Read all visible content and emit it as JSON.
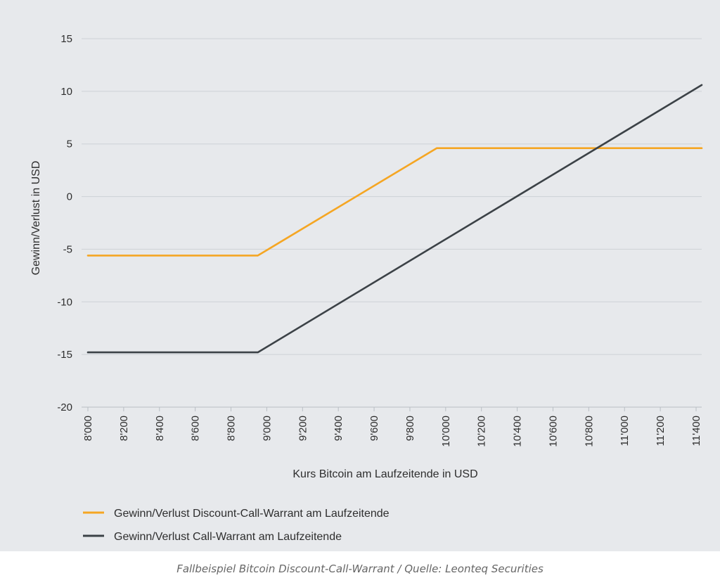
{
  "caption": "Fallbeispiel Bitcoin Discount-Call-Warrant / Quelle: Leonteq Securities",
  "chart_data": {
    "type": "line",
    "title": "",
    "xlabel": "Kurs Bitcoin am Laufzeitende in USD",
    "ylabel": "Gewinn/Verlust in USD",
    "xlim": [
      8000,
      11500
    ],
    "ylim": [
      -20,
      15
    ],
    "x_ticks": [
      8000,
      8200,
      8400,
      8600,
      8800,
      9000,
      9200,
      9400,
      9600,
      9800,
      10000,
      10200,
      10400,
      10600,
      10800,
      11000,
      11200,
      11400
    ],
    "x_tick_labels": [
      "8'000",
      "8'200",
      "8'400",
      "8'600",
      "8'800",
      "9'000",
      "9'200",
      "9'400",
      "9'600",
      "9'800",
      "10'000",
      "10'200",
      "10'400",
      "10'600",
      "10'800",
      "11'000",
      "11'200",
      "11'400"
    ],
    "y_ticks": [
      15,
      10,
      5,
      0,
      -5,
      -10,
      -15,
      -20
    ],
    "y_tick_labels": [
      "15",
      "10",
      "5",
      "0",
      "-5",
      "-10",
      "-15",
      "-20"
    ],
    "grid": "horizontal",
    "legend_position": "bottom-left",
    "series": [
      {
        "name": "Gewinn/Verlust Discount-Call-Warrant am Laufzeitende",
        "color": "#f5a623",
        "x": [
          8000,
          8950,
          9950,
          11500
        ],
        "y": [
          -5.6,
          -5.6,
          4.6,
          4.6
        ]
      },
      {
        "name": "Gewinn/Verlust Call-Warrant am Laufzeitende",
        "color": "#3c4247",
        "x": [
          8000,
          8950,
          11500
        ],
        "y": [
          -14.8,
          -14.8,
          10.6
        ]
      }
    ]
  }
}
